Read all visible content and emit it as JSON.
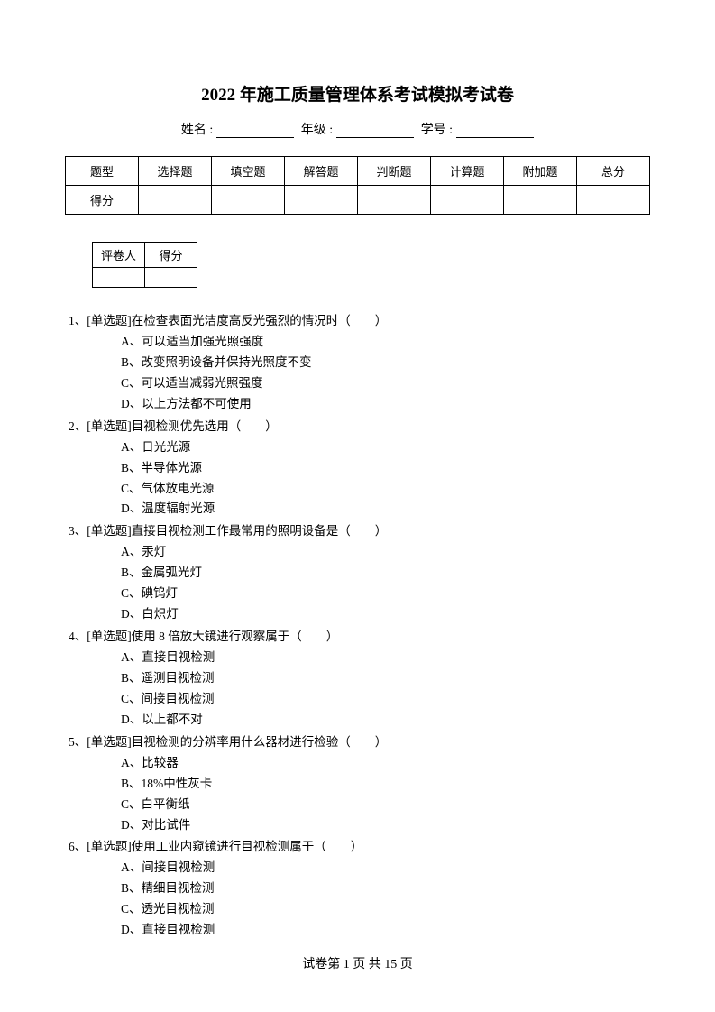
{
  "title": "2022 年施工质量管理体系考试模拟考试卷",
  "info": {
    "name_label": "姓名 :",
    "grade_label": "年级 :",
    "id_label": "学号 :"
  },
  "score_table": {
    "headers": [
      "题型",
      "选择题",
      "填空题",
      "解答题",
      "判断题",
      "计算题",
      "附加题",
      "总分"
    ],
    "row_label": "得分"
  },
  "grader_table": {
    "col1": "评卷人",
    "col2": "得分"
  },
  "questions": [
    {
      "num": "1、",
      "type": "[单选题]",
      "stem": "在检查表面光洁度高反光强烈的情况时（　　）",
      "options": [
        "A、可以适当加强光照强度",
        "B、改变照明设备并保持光照度不变",
        "C、可以适当减弱光照强度",
        "D、以上方法都不可使用"
      ]
    },
    {
      "num": "2、",
      "type": "[单选题]",
      "stem": "目视检测优先选用（　　）",
      "options": [
        "A、日光光源",
        "B、半导体光源",
        "C、气体放电光源",
        "D、温度辐射光源"
      ]
    },
    {
      "num": "3、",
      "type": "[单选题]",
      "stem": "直接目视检测工作最常用的照明设备是（　　）",
      "options": [
        "A、汞灯",
        "B、金属弧光灯",
        "C、碘钨灯",
        "D、白炽灯"
      ]
    },
    {
      "num": "4、",
      "type": "[单选题]",
      "stem": "使用 8 倍放大镜进行观察属于（　　）",
      "options": [
        "A、直接目视检测",
        "B、遥测目视检测",
        "C、间接目视检测",
        "D、以上都不对"
      ]
    },
    {
      "num": "5、",
      "type": "[单选题]",
      "stem": "目视检测的分辨率用什么器材进行检验（　　）",
      "options": [
        "A、比较器",
        "B、18%中性灰卡",
        "C、白平衡纸",
        "D、对比试件"
      ]
    },
    {
      "num": "6、",
      "type": "[单选题]",
      "stem": "使用工业内窥镜进行目视检测属于（　　）",
      "options": [
        "A、间接目视检测",
        "B、精细目视检测",
        "C、透光目视检测",
        "D、直接目视检测"
      ]
    }
  ],
  "footer": {
    "prefix": "试卷第 ",
    "current": "1",
    "middle": " 页 共 ",
    "total": "15",
    "suffix": " 页"
  }
}
